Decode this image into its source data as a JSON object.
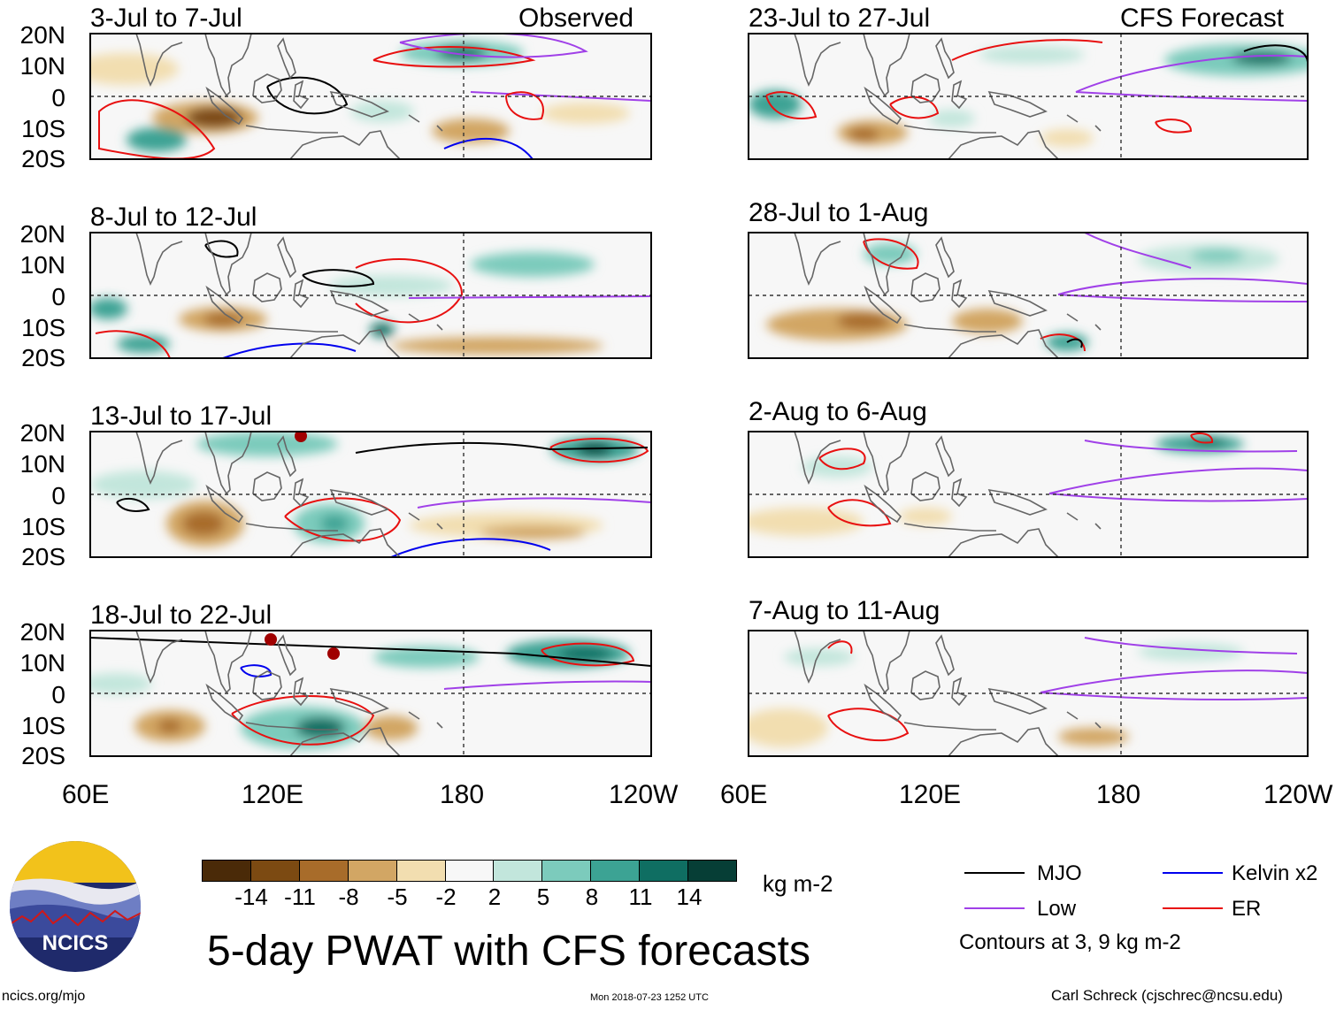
{
  "panels": [
    {
      "title": "3-Jul to 7-Jul",
      "tag": "Observed"
    },
    {
      "title": "8-Jul to 12-Jul",
      "tag": ""
    },
    {
      "title": "13-Jul to 17-Jul",
      "tag": ""
    },
    {
      "title": "18-Jul to 22-Jul",
      "tag": ""
    },
    {
      "title": "23-Jul to 27-Jul",
      "tag": "CFS Forecast"
    },
    {
      "title": "28-Jul to 1-Aug",
      "tag": ""
    },
    {
      "title": "2-Aug to 6-Aug",
      "tag": ""
    },
    {
      "title": "7-Aug to 11-Aug",
      "tag": ""
    }
  ],
  "y_ticks": [
    "20N",
    "10N",
    "0",
    "10S",
    "20S"
  ],
  "x_ticks": [
    "60E",
    "120E",
    "180",
    "120W"
  ],
  "colorbar": {
    "labels": [
      "-14",
      "-11",
      "-8",
      "-5",
      "-2",
      "2",
      "5",
      "8",
      "11",
      "14"
    ],
    "units": "kg m-2",
    "colors": [
      "#4a2a08",
      "#7c4a12",
      "#a86c2a",
      "#d2a664",
      "#f2deb0",
      "#f7f7f7",
      "#c2e6dc",
      "#7ccbbc",
      "#3ca394",
      "#0f6e62",
      "#063e36"
    ]
  },
  "title": "5-day PWAT with CFS forecasts",
  "legend": {
    "items": [
      {
        "label": "MJO",
        "color": "#000000"
      },
      {
        "label": "Kelvin x2",
        "color": "#0000ee"
      },
      {
        "label": "Low",
        "color": "#a040e8"
      },
      {
        "label": "ER",
        "color": "#e81010"
      }
    ],
    "note": "Contours at 3, 9 kg m-2"
  },
  "logo_text": "NCICS",
  "footer": {
    "url": "ncics.org/mjo",
    "timestamp": "Mon 2018-07-23 1252 UTC",
    "author": "Carl Schreck (cjschrec@ncsu.edu)"
  }
}
